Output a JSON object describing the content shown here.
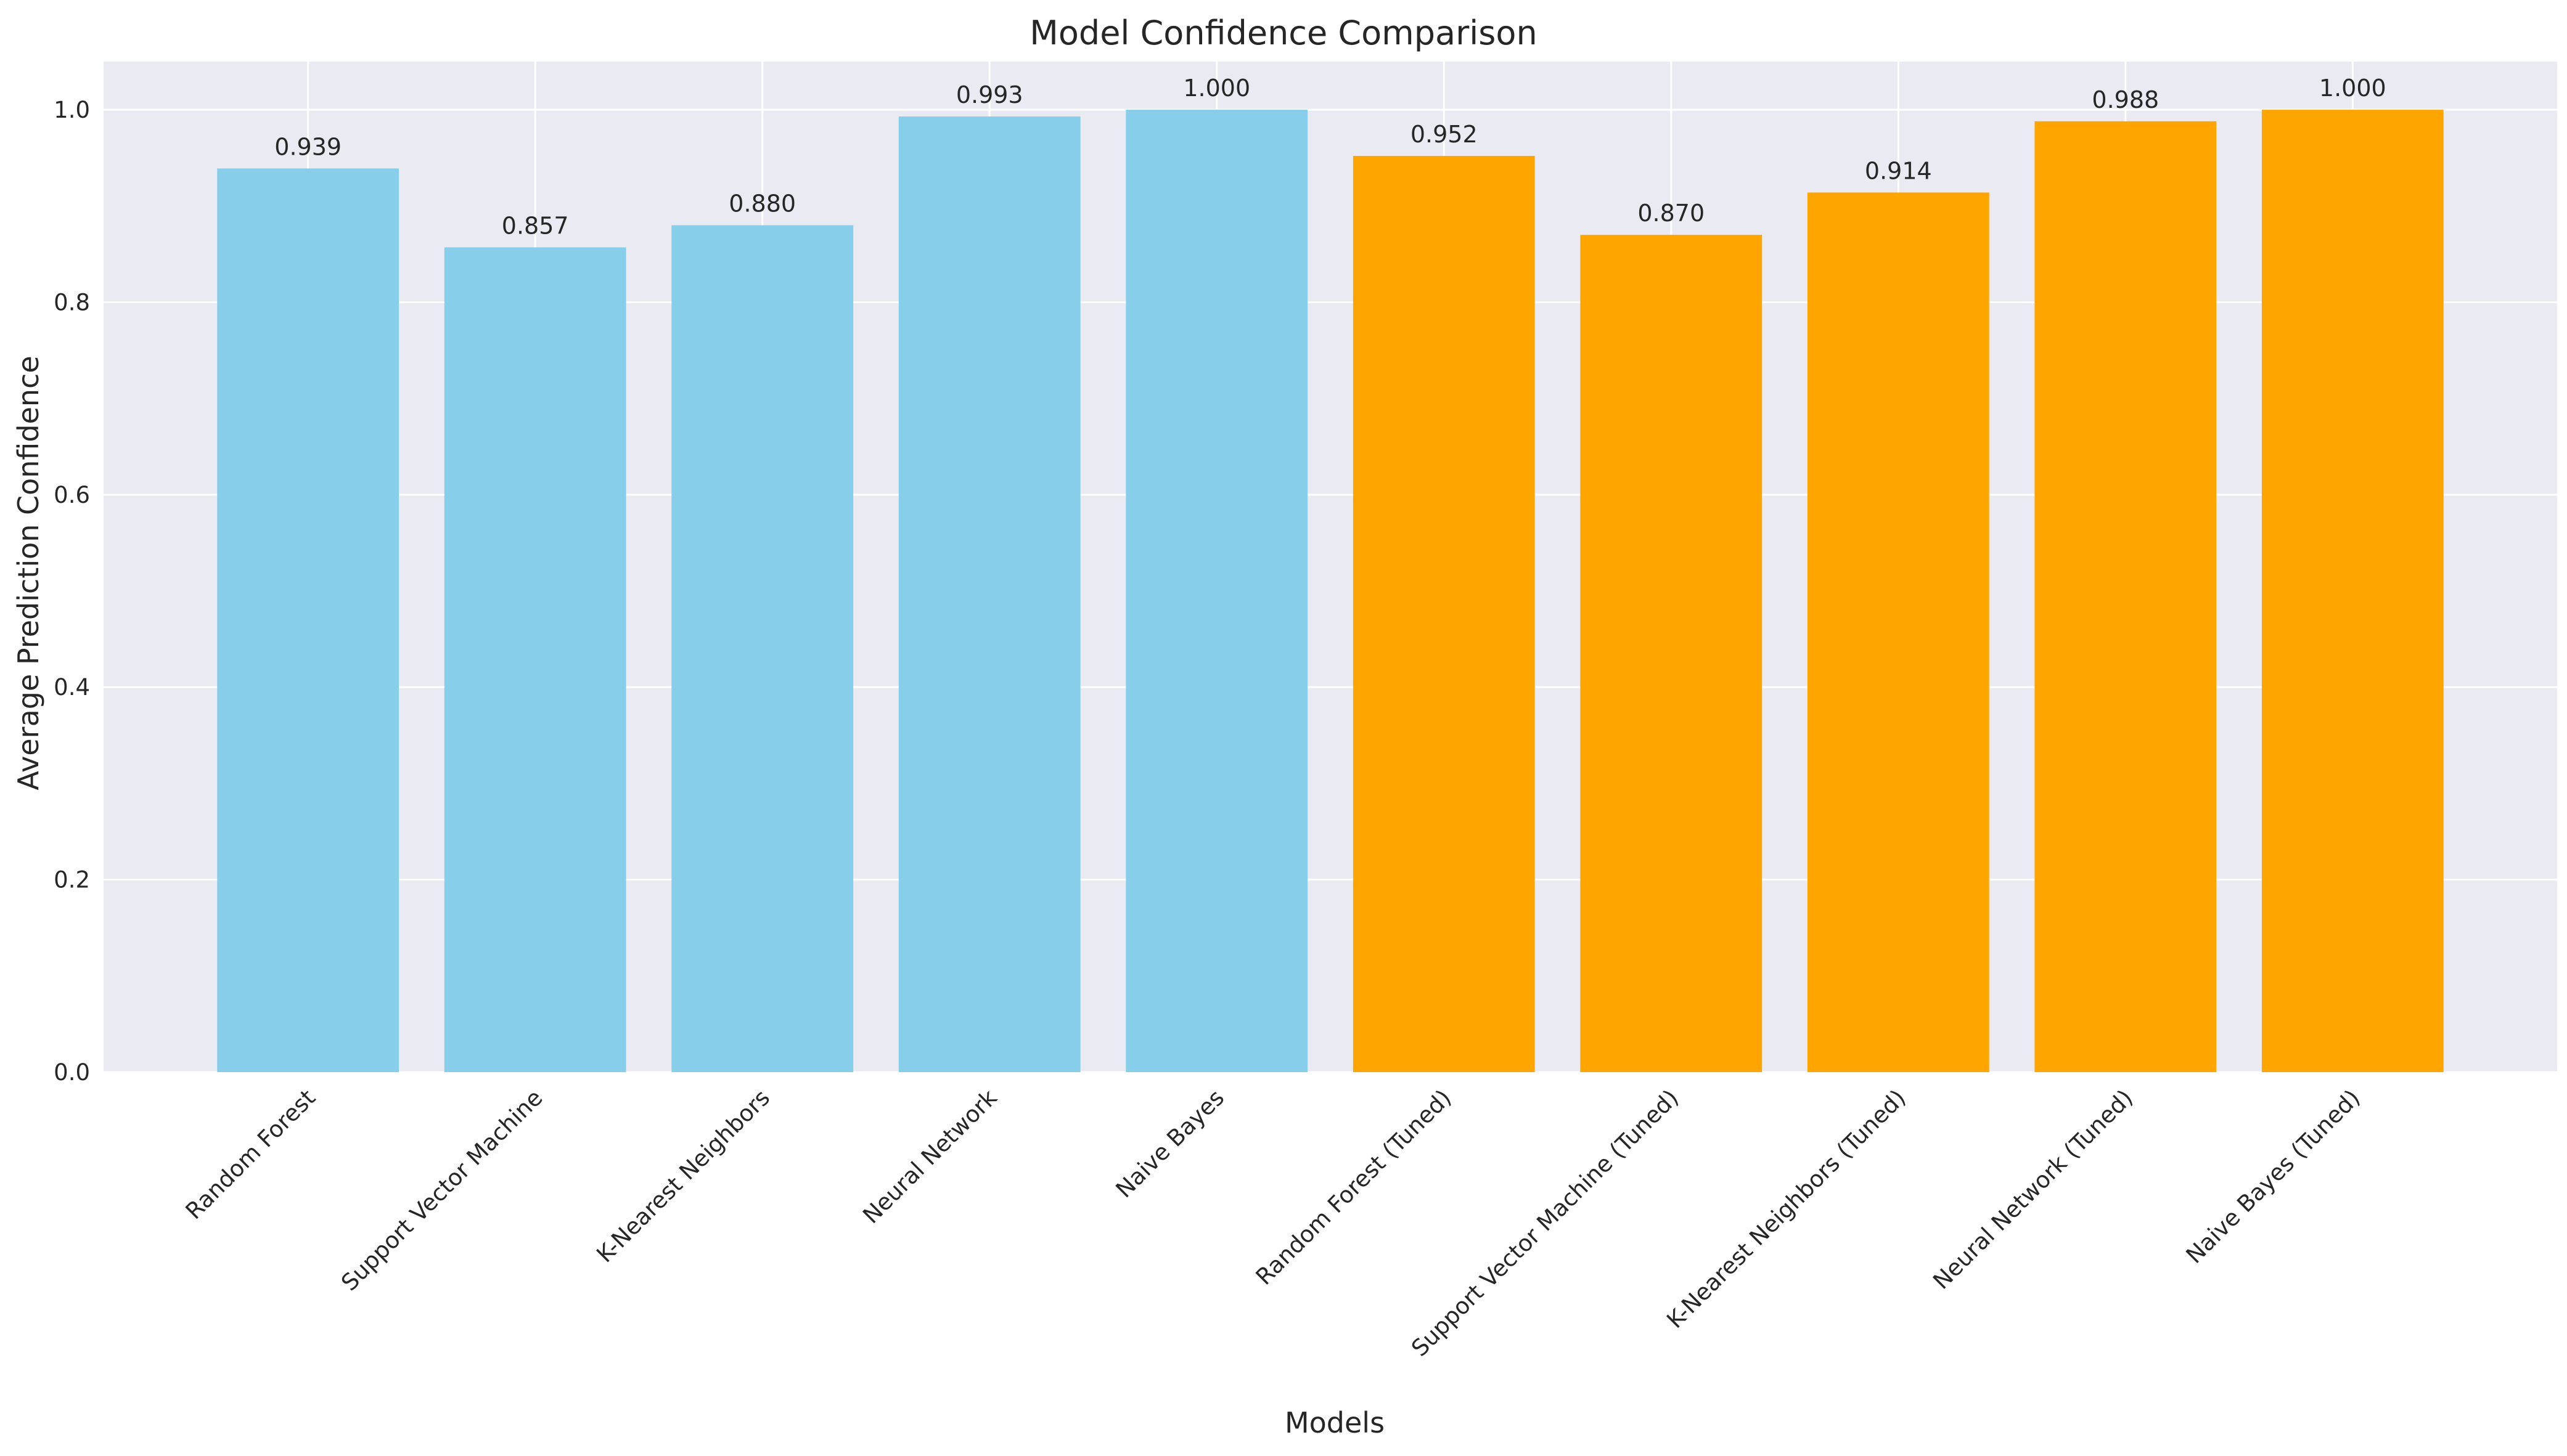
{
  "chart_data": {
    "type": "bar",
    "title": "Model Confidence Comparison",
    "xlabel": "Models",
    "ylabel": "Average Prediction Confidence",
    "ylim": [
      0,
      1.05
    ],
    "yticks": [
      "0.0",
      "0.2",
      "0.4",
      "0.6",
      "0.8",
      "1.0"
    ],
    "grid": true,
    "categories": [
      "Random Forest",
      "Support Vector Machine",
      "K-Nearest Neighbors",
      "Neural Network",
      "Naive Bayes",
      "Random Forest (Tuned)",
      "Support Vector Machine (Tuned)",
      "K-Nearest Neighbors (Tuned)",
      "Neural Network (Tuned)",
      "Naive Bayes (Tuned)"
    ],
    "values": [
      0.939,
      0.857,
      0.88,
      0.993,
      1.0,
      0.952,
      0.87,
      0.914,
      0.988,
      1.0
    ],
    "value_labels": [
      "0.939",
      "0.857",
      "0.880",
      "0.993",
      "1.000",
      "0.952",
      "0.870",
      "0.914",
      "0.988",
      "1.000"
    ],
    "bar_colors": [
      "#87CEEB",
      "#87CEEB",
      "#87CEEB",
      "#87CEEB",
      "#87CEEB",
      "#FFA500",
      "#FFA500",
      "#FFA500",
      "#FFA500",
      "#FFA500"
    ],
    "plot_background": "#EAEAF2",
    "grid_color": "#FFFFFF"
  }
}
